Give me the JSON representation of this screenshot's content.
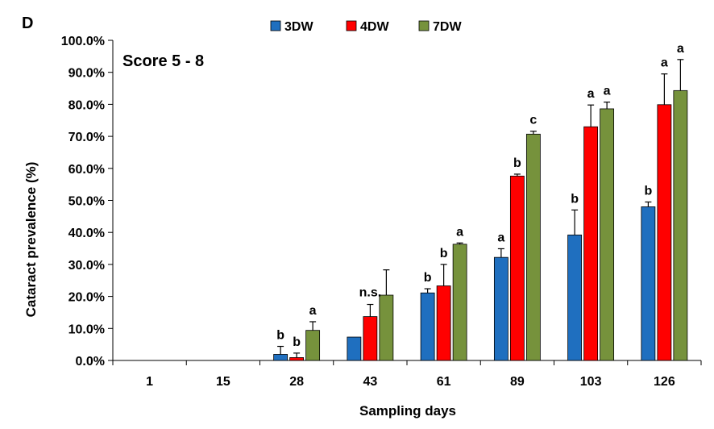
{
  "panel_label": "D",
  "chart_data": {
    "type": "bar",
    "annotation": "Score 5 - 8",
    "xlabel": "Sampling days",
    "ylabel": "Cataract prevalence (%)",
    "ylim": [
      0,
      100
    ],
    "ytick_step": 10,
    "ytick_labels": [
      "0.0%",
      "10.0%",
      "20.0%",
      "30.0%",
      "40.0%",
      "50.0%",
      "60.0%",
      "70.0%",
      "80.0%",
      "90.0%",
      "100.0%"
    ],
    "categories": [
      "1",
      "15",
      "28",
      "43",
      "61",
      "89",
      "103",
      "126"
    ],
    "legend_position": "top-center",
    "series": [
      {
        "name": "3DW",
        "color": "#1f6fbf",
        "values": [
          0,
          0,
          1.9,
          7.3,
          21.1,
          32.2,
          39.2,
          48.0
        ],
        "errors": [
          0,
          0,
          2.5,
          0,
          1.3,
          2.7,
          7.8,
          1.5
        ],
        "labels": [
          "",
          "",
          "b",
          "",
          "b",
          "a",
          "b",
          "b"
        ]
      },
      {
        "name": "4DW",
        "color": "#ff0000",
        "values": [
          0,
          0,
          0.9,
          13.7,
          23.3,
          57.6,
          73.0,
          79.9
        ],
        "errors": [
          0,
          0,
          1.4,
          3.8,
          6.7,
          0.6,
          6.8,
          9.6
        ],
        "labels": [
          "",
          "",
          "b",
          "",
          "b",
          "b",
          "a",
          "a"
        ]
      },
      {
        "name": "7DW",
        "color": "#76923c",
        "values": [
          0,
          0,
          9.4,
          20.4,
          36.3,
          70.7,
          78.6,
          84.3
        ],
        "errors": [
          0,
          0,
          2.7,
          7.9,
          0.4,
          0.9,
          2.1,
          9.7
        ],
        "labels": [
          "",
          "",
          "a",
          "",
          "a",
          "c",
          "a",
          "a"
        ]
      }
    ],
    "group_labels": [
      "",
      "",
      "",
      "n.s.",
      "",
      "",
      "",
      ""
    ]
  }
}
